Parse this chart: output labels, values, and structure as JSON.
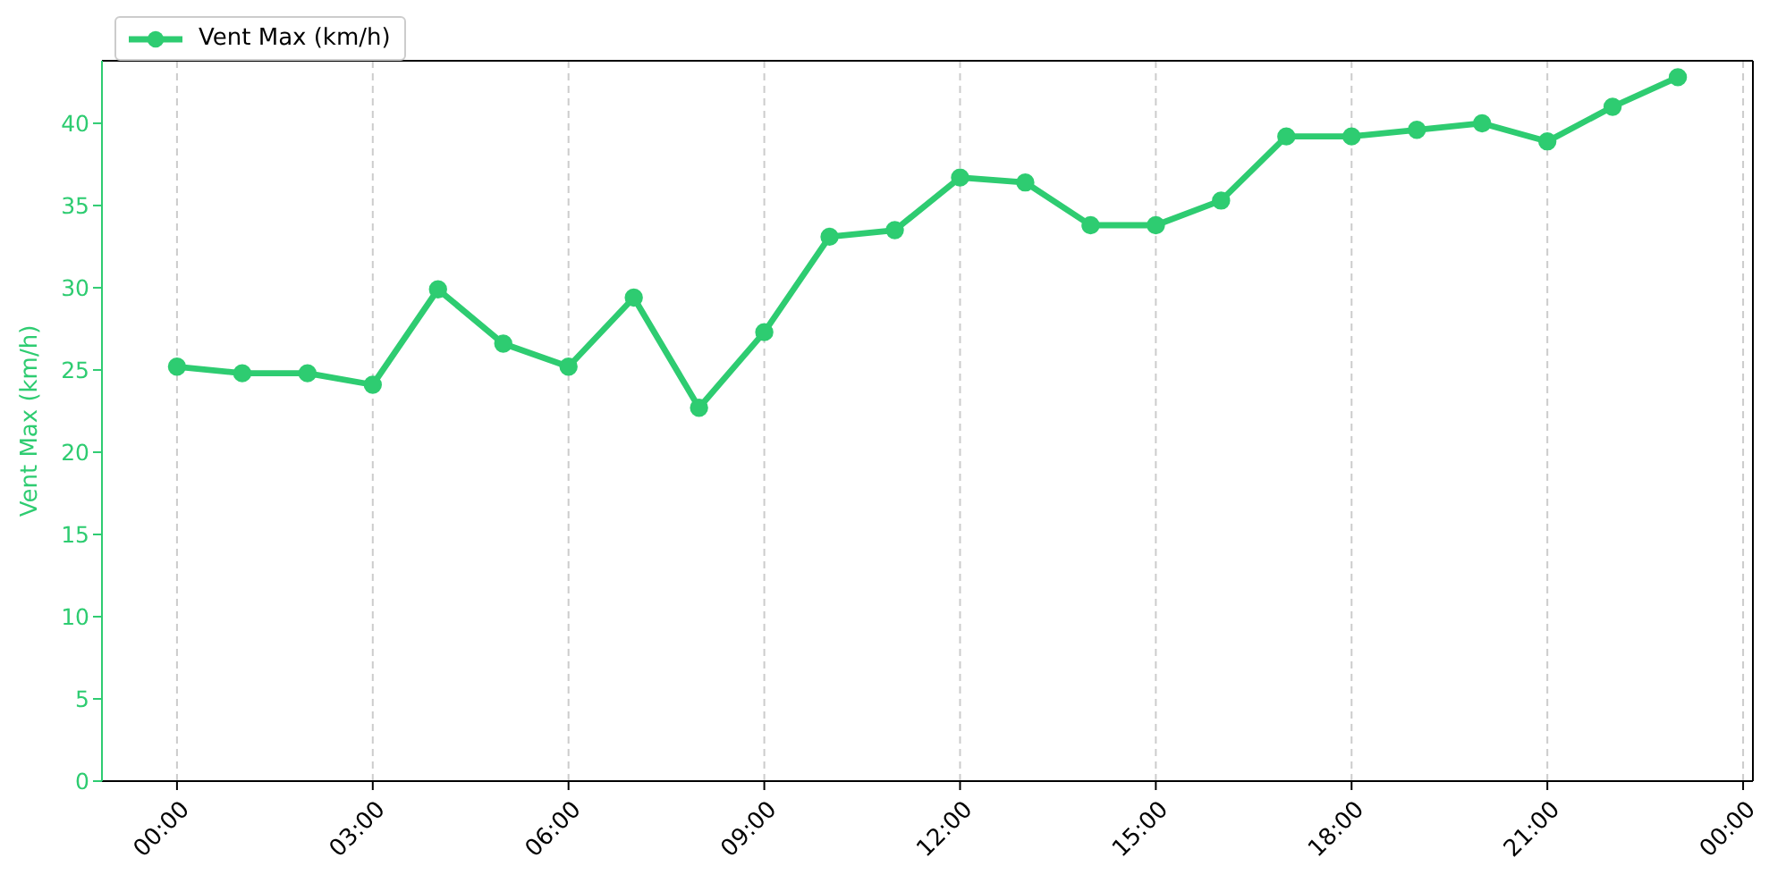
{
  "chart_data": {
    "type": "line",
    "ylabel": "Vent Max (km/h)",
    "x": [
      0,
      1,
      2,
      3,
      4,
      5,
      6,
      7,
      8,
      9,
      10,
      11,
      12,
      13,
      14,
      15,
      16,
      17,
      18,
      19,
      20,
      21,
      22,
      23
    ],
    "series": [
      {
        "name": "Vent Max (km/h)",
        "color": "#2ecc71",
        "values": [
          25.2,
          24.8,
          24.8,
          24.1,
          29.9,
          26.6,
          25.2,
          29.4,
          22.7,
          27.3,
          33.1,
          33.5,
          36.7,
          36.4,
          33.8,
          33.8,
          35.3,
          39.2,
          39.2,
          39.6,
          40.0,
          38.9,
          41.0,
          42.8
        ]
      }
    ],
    "xlim": [
      -1.15,
      24.15
    ],
    "xticks": [
      {
        "value": 0,
        "label": "00:00"
      },
      {
        "value": 3,
        "label": "03:00"
      },
      {
        "value": 6,
        "label": "06:00"
      },
      {
        "value": 9,
        "label": "09:00"
      },
      {
        "value": 12,
        "label": "12:00"
      },
      {
        "value": 15,
        "label": "15:00"
      },
      {
        "value": 18,
        "label": "18:00"
      },
      {
        "value": 21,
        "label": "21:00"
      },
      {
        "value": 24,
        "label": "00:00"
      }
    ],
    "ylim": [
      0,
      43.8
    ],
    "yticks": [
      0,
      5,
      10,
      15,
      20,
      25,
      30,
      35,
      40
    ],
    "grid": "x",
    "legend": "top left",
    "marker": "circle"
  }
}
